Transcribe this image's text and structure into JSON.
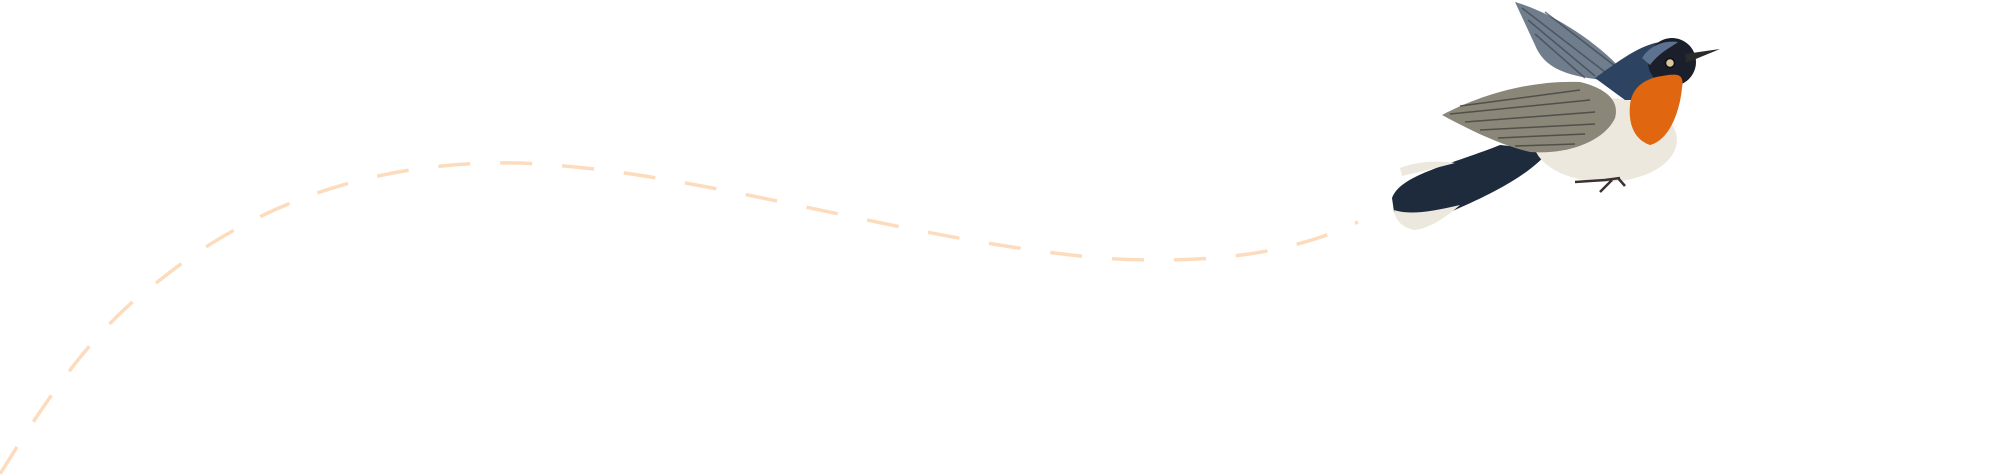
{
  "illustration": {
    "subject": "bird-in-flight",
    "colors": {
      "background": "#ffffff",
      "flight_path": "#fddcbd",
      "throat": "#e0660f",
      "head": "#1b1f2b",
      "crown": "#5d7190",
      "belly": "#ede8de",
      "wing": "#8a8678",
      "tail": "#1d2b3c"
    }
  }
}
